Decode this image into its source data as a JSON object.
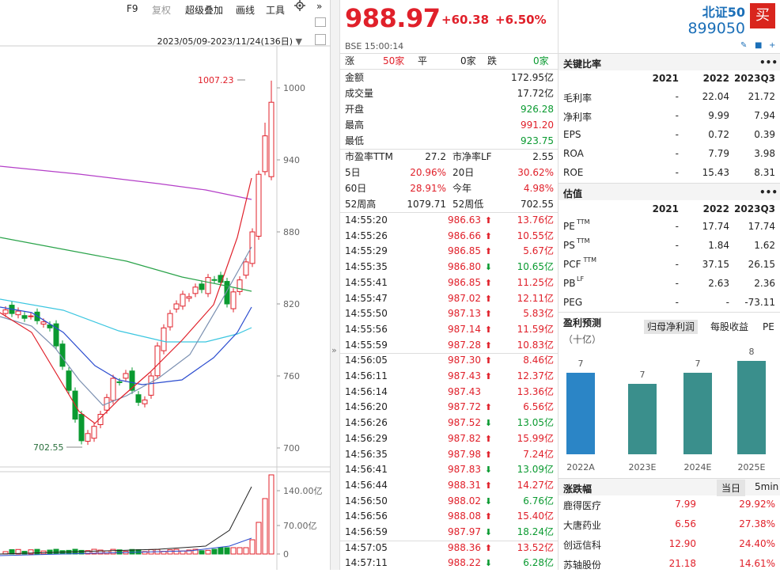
{
  "toolbar": {
    "f9": "F9",
    "fuquan": "复权",
    "overlay": "超级叠加",
    "draw": "画线",
    "tools": "工具",
    "more": "»"
  },
  "chart": {
    "date_range": "2023/05/09-2023/11/24(136日)",
    "high_label": "1007.23",
    "low_label": "702.55",
    "price_ticks": [
      "1000",
      "940",
      "880",
      "820",
      "760",
      "700"
    ],
    "volume_ticks": [
      "140.00亿",
      "70.00亿",
      "0"
    ]
  },
  "quote": {
    "price": "988.97",
    "change": "+60.38",
    "change_pct": "+6.50%",
    "time": "BSE 15:00:14",
    "breadth": {
      "up_label": "涨",
      "up_val": "50家",
      "flat_label": "平",
      "flat_val": "0家",
      "down_label": "跌",
      "down_val": "0家"
    },
    "rows": [
      {
        "label": "金额",
        "value": "172.95亿"
      },
      {
        "label": "成交量",
        "value": "17.72亿"
      },
      {
        "label": "开盘",
        "value": "926.28"
      },
      {
        "label": "最高",
        "value": "991.20"
      },
      {
        "label": "最低",
        "value": "923.75"
      }
    ],
    "pairs": [
      {
        "l1": "市盈率TTM",
        "v1": "27.2",
        "l2": "市净率LF",
        "v2": "2.55"
      },
      {
        "l1": "5日",
        "v1": "20.96%",
        "l2": "20日",
        "v2": "30.62%"
      },
      {
        "l1": "60日",
        "v1": "28.91%",
        "l2": "今年",
        "v2": "4.98%"
      },
      {
        "l1": "52周高",
        "v1": "1079.71",
        "l2": "52周低",
        "v2": "702.55"
      }
    ],
    "ticks": [
      {
        "t": "14:55:20",
        "p": "986.63",
        "d": "up",
        "v": "13.76亿"
      },
      {
        "t": "14:55:26",
        "p": "986.66",
        "d": "up",
        "v": "10.55亿"
      },
      {
        "t": "14:55:29",
        "p": "986.85",
        "d": "up",
        "v": "5.67亿"
      },
      {
        "t": "14:55:35",
        "p": "986.80",
        "d": "down",
        "v": "10.65亿"
      },
      {
        "t": "14:55:41",
        "p": "986.85",
        "d": "up",
        "v": "11.25亿"
      },
      {
        "t": "14:55:47",
        "p": "987.02",
        "d": "up",
        "v": "12.11亿"
      },
      {
        "t": "14:55:50",
        "p": "987.13",
        "d": "up",
        "v": "5.83亿"
      },
      {
        "t": "14:55:56",
        "p": "987.14",
        "d": "up",
        "v": "11.59亿"
      },
      {
        "t": "14:55:59",
        "p": "987.28",
        "d": "up",
        "v": "10.83亿"
      },
      {
        "t": "14:56:05",
        "p": "987.30",
        "d": "up",
        "v": "8.46亿"
      },
      {
        "t": "14:56:11",
        "p": "987.43",
        "d": "up",
        "v": "12.37亿"
      },
      {
        "t": "14:56:14",
        "p": "987.43",
        "d": "none",
        "v": "13.36亿"
      },
      {
        "t": "14:56:20",
        "p": "987.72",
        "d": "up",
        "v": "6.56亿"
      },
      {
        "t": "14:56:26",
        "p": "987.52",
        "d": "down",
        "v": "13.05亿"
      },
      {
        "t": "14:56:29",
        "p": "987.82",
        "d": "up",
        "v": "15.99亿"
      },
      {
        "t": "14:56:35",
        "p": "987.98",
        "d": "up",
        "v": "7.24亿"
      },
      {
        "t": "14:56:41",
        "p": "987.83",
        "d": "down",
        "v": "13.09亿"
      },
      {
        "t": "14:56:44",
        "p": "988.31",
        "d": "up",
        "v": "14.27亿"
      },
      {
        "t": "14:56:50",
        "p": "988.02",
        "d": "down",
        "v": "6.76亿"
      },
      {
        "t": "14:56:56",
        "p": "988.08",
        "d": "up",
        "v": "15.40亿"
      },
      {
        "t": "14:56:59",
        "p": "987.97",
        "d": "down",
        "v": "18.24亿"
      },
      {
        "t": "14:57:05",
        "p": "988.36",
        "d": "up",
        "v": "13.52亿"
      },
      {
        "t": "14:57:11",
        "p": "988.22",
        "d": "down",
        "v": "6.28亿"
      }
    ]
  },
  "index": {
    "name": "北证50",
    "code": "899050",
    "buy": "买"
  },
  "ratios": {
    "title": "关键比率",
    "more": "•••",
    "years": [
      "2021",
      "2022",
      "2023Q3"
    ],
    "rows": [
      {
        "label": "毛利率",
        "v": [
          "-",
          "22.04",
          "21.72"
        ]
      },
      {
        "label": "净利率",
        "v": [
          "-",
          "9.99",
          "7.94"
        ]
      },
      {
        "label": "EPS",
        "v": [
          "-",
          "0.72",
          "0.39"
        ]
      },
      {
        "label": "ROA",
        "v": [
          "-",
          "7.79",
          "3.98"
        ]
      },
      {
        "label": "ROE",
        "v": [
          "-",
          "15.43",
          "8.31"
        ]
      }
    ]
  },
  "valuation": {
    "title": "估值",
    "more": "•••",
    "years": [
      "2021",
      "2022",
      "2023Q3"
    ],
    "rows": [
      {
        "label": "PE",
        "sup": "TTM",
        "v": [
          "-",
          "17.74",
          "17.74"
        ]
      },
      {
        "label": "PS",
        "sup": "TTM",
        "v": [
          "-",
          "1.84",
          "1.62"
        ]
      },
      {
        "label": "PCF",
        "sup": "TTM",
        "v": [
          "-",
          "37.15",
          "26.15"
        ]
      },
      {
        "label": "PB",
        "sup": "LF",
        "v": [
          "-",
          "2.63",
          "2.36"
        ]
      },
      {
        "label": "PEG",
        "sup": "",
        "v": [
          "-",
          "-",
          "-73.11"
        ]
      }
    ]
  },
  "forecast": {
    "title": "盈利预测",
    "tab1": "归母净利润",
    "tab2": "每股收益",
    "tab3": "PE",
    "unit": "（十亿）",
    "bars": [
      {
        "label": "2022A",
        "value": 7
      },
      {
        "label": "2023E",
        "value": 7
      },
      {
        "label": "2024E",
        "value": 7
      },
      {
        "label": "2025E",
        "value": 8
      }
    ]
  },
  "movers": {
    "title": "涨跌幅",
    "tab1": "当日",
    "tab2": "5min",
    "rows": [
      {
        "name": "鹿得医疗",
        "price": "7.99",
        "pct": "29.92%"
      },
      {
        "name": "大唐药业",
        "price": "6.56",
        "pct": "27.38%"
      },
      {
        "name": "创远信科",
        "price": "12.90",
        "pct": "24.40%"
      },
      {
        "name": "苏轴股份",
        "price": "21.18",
        "pct": "14.61%"
      }
    ]
  },
  "colors": {
    "up": "#e0202a",
    "down": "#0a9a30",
    "brand": "#1b6fb8"
  }
}
